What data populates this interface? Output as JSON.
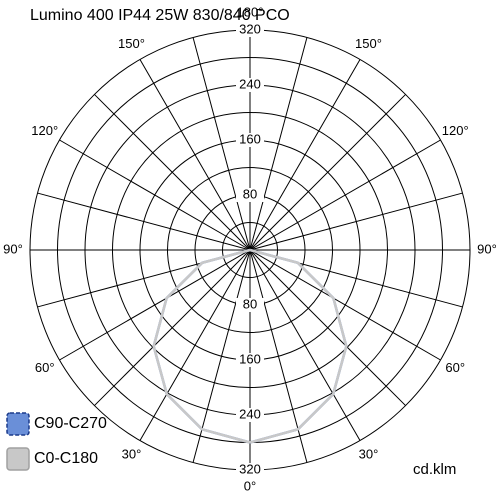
{
  "chart_data": {
    "type": "polar",
    "title": "Lumino 400 IP44 25W 830/840 PCO",
    "unit": "cd.klm",
    "rlim": [
      0,
      320
    ],
    "rticks": [
      80,
      160,
      240,
      320
    ],
    "rgrid": [
      40,
      80,
      120,
      160,
      200,
      240,
      280,
      320
    ],
    "angle_grid": [
      0,
      15,
      30,
      45,
      60,
      75,
      90,
      105,
      120,
      135,
      150,
      165,
      180
    ],
    "angle_ticks": [
      {
        "value": 0,
        "label": "0°"
      },
      {
        "value": 30,
        "label": "30°"
      },
      {
        "value": 60,
        "label": "60°"
      },
      {
        "value": 90,
        "label": "90°"
      },
      {
        "value": 120,
        "label": "120°"
      },
      {
        "value": 150,
        "label": "150°"
      },
      {
        "value": 180,
        "label": "180°"
      }
    ],
    "angles": [
      0,
      15,
      30,
      45,
      60,
      75,
      90,
      105,
      120,
      135,
      150,
      165,
      180
    ],
    "series": [
      {
        "name": "C90-C270",
        "color": "#6a8fd8",
        "values": [
          280,
          270,
          242,
          198,
          140,
          72,
          0,
          0,
          0,
          0,
          0,
          0,
          0
        ]
      },
      {
        "name": "C0-C180",
        "color": "#c8c8c8",
        "values": [
          280,
          270,
          242,
          198,
          140,
          72,
          0,
          0,
          0,
          0,
          0,
          0,
          0
        ]
      }
    ]
  }
}
